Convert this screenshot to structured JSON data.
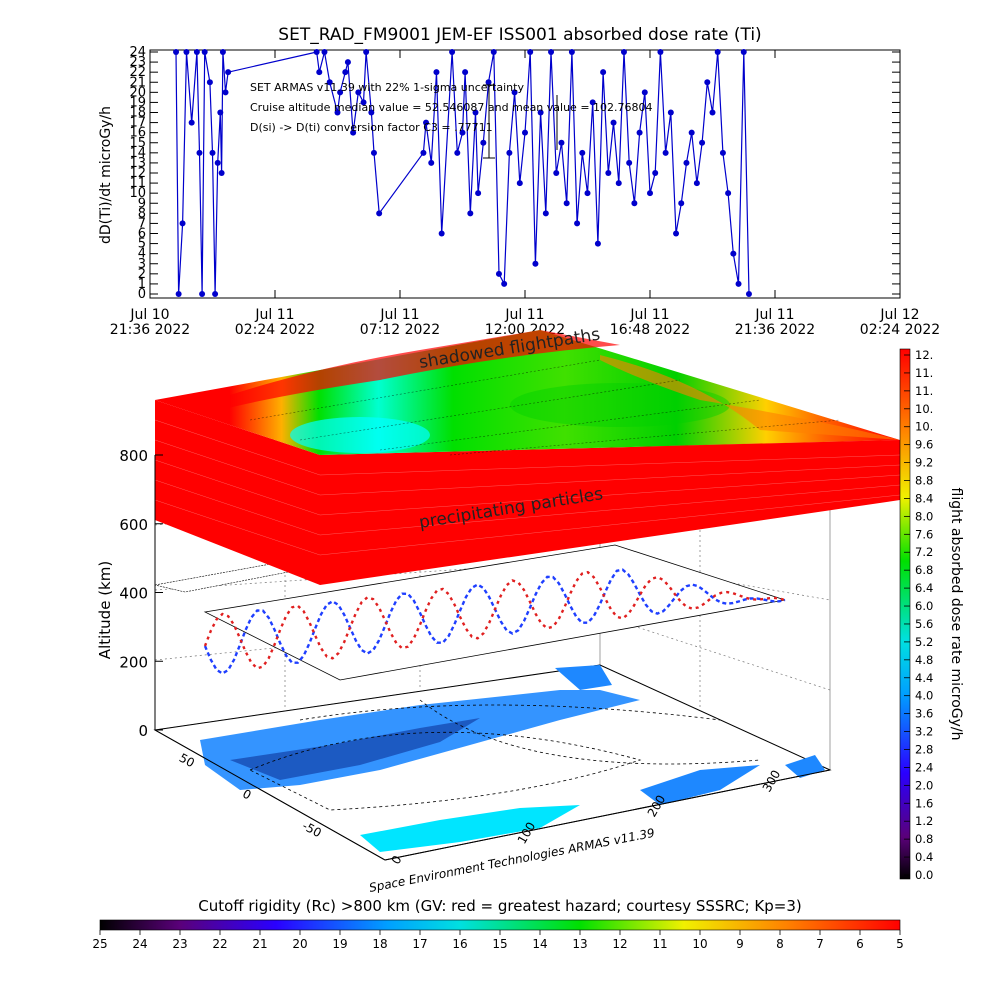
{
  "chart_data": [
    {
      "type": "line",
      "title": "SET_RAD_FM9001  JEM-EF ISS001 absorbed dose rate (Ti)",
      "ylabel": "dD(Ti)/dt microGy/h",
      "ylim": [
        0,
        24
      ],
      "y_ticks": [
        "0",
        "1",
        "2",
        "3",
        "4",
        "5",
        "6",
        "7",
        "8",
        "9",
        "10",
        "11",
        "12",
        "13",
        "14",
        "15",
        "16",
        "17",
        "18",
        "19",
        "20",
        "21",
        "22",
        "23",
        "24"
      ],
      "x_ticks": [
        {
          "line1": "Jul 10",
          "line2": "21:36 2022"
        },
        {
          "line1": "Jul 11",
          "line2": "02:24 2022"
        },
        {
          "line1": "Jul 11",
          "line2": "07:12 2022"
        },
        {
          "line1": "Jul 11",
          "line2": "12:00 2022"
        },
        {
          "line1": "Jul 11",
          "line2": "16:48 2022"
        },
        {
          "line1": "Jul 11",
          "line2": "21:36 2022"
        },
        {
          "line1": "Jul 12",
          "line2": "02:24 2022"
        }
      ],
      "annotations": [
        "SET ARMAS v11.39 with 22% 1-sigma uncertainty",
        "Cruise altitude median value = 52.546087 and mean value = 102.76804",
        "D(si) -> D(ti) conversion factor C3 =   .77711"
      ],
      "series": [
        {
          "color": "#0000cc",
          "x_hours_from_start": [
            1.0,
            1.1,
            1.25,
            1.4,
            1.6,
            1.8,
            1.9,
            2.0,
            2.1,
            2.3,
            2.4,
            2.5,
            2.6,
            2.7,
            2.75,
            2.8,
            2.9,
            3.0,
            6.4,
            6.5,
            6.7,
            6.9,
            7.2,
            7.3,
            7.5,
            7.6,
            7.8,
            8.0,
            8.2,
            8.3,
            8.5,
            8.6,
            8.8,
            10.5,
            10.6,
            10.8,
            11.0,
            11.2,
            11.6,
            11.8,
            12.0,
            12.1,
            12.3,
            12.5,
            12.6,
            12.8,
            13.0,
            13.2,
            13.4,
            13.6,
            13.8,
            14.0,
            14.2,
            14.4,
            14.6,
            14.8,
            15.0,
            15.2,
            15.4,
            15.6,
            15.8,
            16.0,
            16.2,
            16.4,
            16.6,
            16.8,
            17.0,
            17.2,
            17.4,
            17.6,
            17.8,
            18.0,
            18.2,
            18.4,
            18.6,
            18.8,
            19.0,
            19.2,
            19.4,
            19.6,
            19.8,
            20.0,
            20.2,
            20.4,
            20.6,
            20.8,
            21.0,
            21.2,
            21.4,
            21.6,
            21.8,
            22.0,
            22.2,
            22.4,
            22.6,
            22.8,
            23.0
          ],
          "values": [
            24,
            0,
            7,
            24,
            17,
            24,
            14,
            0,
            24,
            21,
            14,
            0,
            13,
            18,
            12,
            24,
            20,
            22,
            24,
            22,
            24,
            21,
            18,
            20,
            22,
            23,
            16,
            20,
            19,
            24,
            18,
            14,
            8,
            14,
            17,
            13,
            22,
            6,
            24,
            14,
            16,
            22,
            8,
            18,
            10,
            15,
            21,
            24,
            2,
            1,
            14,
            20,
            11,
            16,
            24,
            3,
            18,
            8,
            24,
            12,
            15,
            9,
            24,
            7,
            14,
            10,
            19,
            5,
            22,
            12,
            17,
            11,
            24,
            13,
            9,
            16,
            20,
            10,
            12,
            24,
            14,
            18,
            6,
            9,
            13,
            16,
            11,
            15,
            21,
            18,
            24,
            14,
            10,
            4,
            1,
            24,
            0
          ]
        }
      ]
    },
    {
      "type": "heatmap",
      "title": "",
      "zlabel": "Altitude (km)",
      "z_ticks": [
        "0",
        "200",
        "400",
        "600",
        "800"
      ],
      "layer_labels": [
        "shadowed flightpaths",
        "precipitating particles"
      ],
      "lat_ticks": [
        "50",
        "0",
        "-50"
      ],
      "lon_ticks": [
        "0",
        "100",
        "200",
        "300"
      ],
      "credit": "Space Environment Technologies ARMAS v11.39"
    },
    {
      "type": "heatmap",
      "title": "flight absorbed dose rate microGy/h",
      "colorbar": "vertical",
      "ticks": [
        "12.",
        "11.",
        "11.",
        "10.",
        "10.",
        "9.6",
        "9.2",
        "8.8",
        "8.4",
        "8.0",
        "7.6",
        "7.2",
        "6.8",
        "6.4",
        "6.0",
        "5.6",
        "5.2",
        "4.8",
        "4.4",
        "4.0",
        "3.6",
        "3.2",
        "2.8",
        "2.4",
        "2.0",
        "1.6",
        "1.2",
        "0.8",
        "0.4",
        "0.0"
      ]
    },
    {
      "type": "heatmap",
      "title": "Cutoff rigidity (Rc) >800 km (GV: red = greatest hazard; courtesy SSSRC; Kp=3)",
      "colorbar": "horizontal",
      "ticks": [
        "25",
        "24",
        "23",
        "22",
        "21",
        "20",
        "19",
        "18",
        "17",
        "16",
        "15",
        "14",
        "13",
        "12",
        "11",
        "10",
        "9",
        "8",
        "7",
        "6",
        "5"
      ]
    }
  ],
  "colors": {
    "series_blue": "#0000cc",
    "heat_red": "#ff0000",
    "heat_cyan": "#00ffff",
    "ocean": "#1e90ff",
    "ocean_light": "#00e5ff"
  }
}
